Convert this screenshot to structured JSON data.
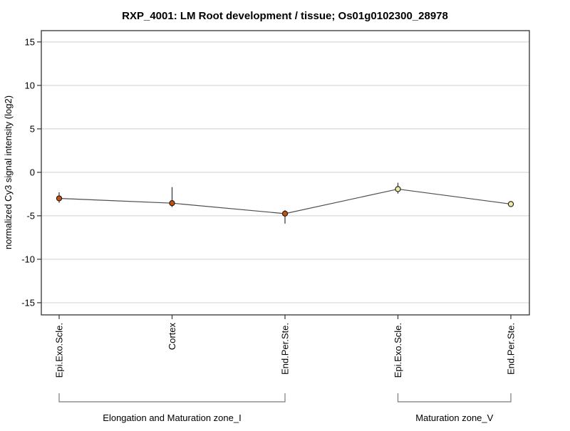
{
  "title": "RXP_4001: LM Root development / tissue; Os01g0102300_28978",
  "chart_data": {
    "type": "line",
    "title": "RXP_4001: LM Root development / tissue; Os01g0102300_28978",
    "ylabel": "normalized Cy3 signal intensity (log2)",
    "xlabel": "",
    "ylim": [
      -16.4,
      16.3
    ],
    "yticks": [
      15,
      10,
      5,
      0,
      -5,
      -10,
      -15
    ],
    "grid": "horizontal-only",
    "legend": "none",
    "background_color": "#ffffff",
    "grid_color": "#d9d9d9",
    "frame_color": "#333333",
    "line_color": "#4d4d4d",
    "error_bar_color": "#333333",
    "marker_outline_color": "#1a1a1a",
    "bracket_color": "#7a7a7a",
    "categories": [
      "Epi.Exo.Scle.",
      "Cortex",
      "End.Per.Ste.",
      "Epi.Exo.Scle.",
      "End.Per.Ste."
    ],
    "series": [
      {
        "name": "normalized Cy3 signal intensity (log2)",
        "points": [
          {
            "category": "Epi.Exo.Scle.",
            "value": -3.0,
            "err_top": -2.3,
            "err_bottom": -3.5,
            "marker_color": "#C6500A"
          },
          {
            "category": "Cortex",
            "value": -3.55,
            "err_top": -1.7,
            "err_bottom": -4.0,
            "marker_color": "#C6500A"
          },
          {
            "category": "End.Per.Ste.",
            "value": -4.75,
            "err_top": -4.35,
            "err_bottom": -5.9,
            "marker_color": "#C6500A"
          },
          {
            "category": "Epi.Exo.Scle.",
            "value": -1.93,
            "err_top": -1.2,
            "err_bottom": -2.45,
            "marker_color": "#ECECA4"
          },
          {
            "category": "End.Per.Ste.",
            "value": -3.65,
            "err_top": -3.4,
            "err_bottom": -3.9,
            "marker_color": "#ECECA4"
          }
        ]
      }
    ],
    "groups": [
      {
        "label": "Elongation and Maturation zone_I",
        "start_index": 0,
        "end_index": 2
      },
      {
        "label": "Maturation zone_V",
        "start_index": 3,
        "end_index": 4
      }
    ]
  }
}
